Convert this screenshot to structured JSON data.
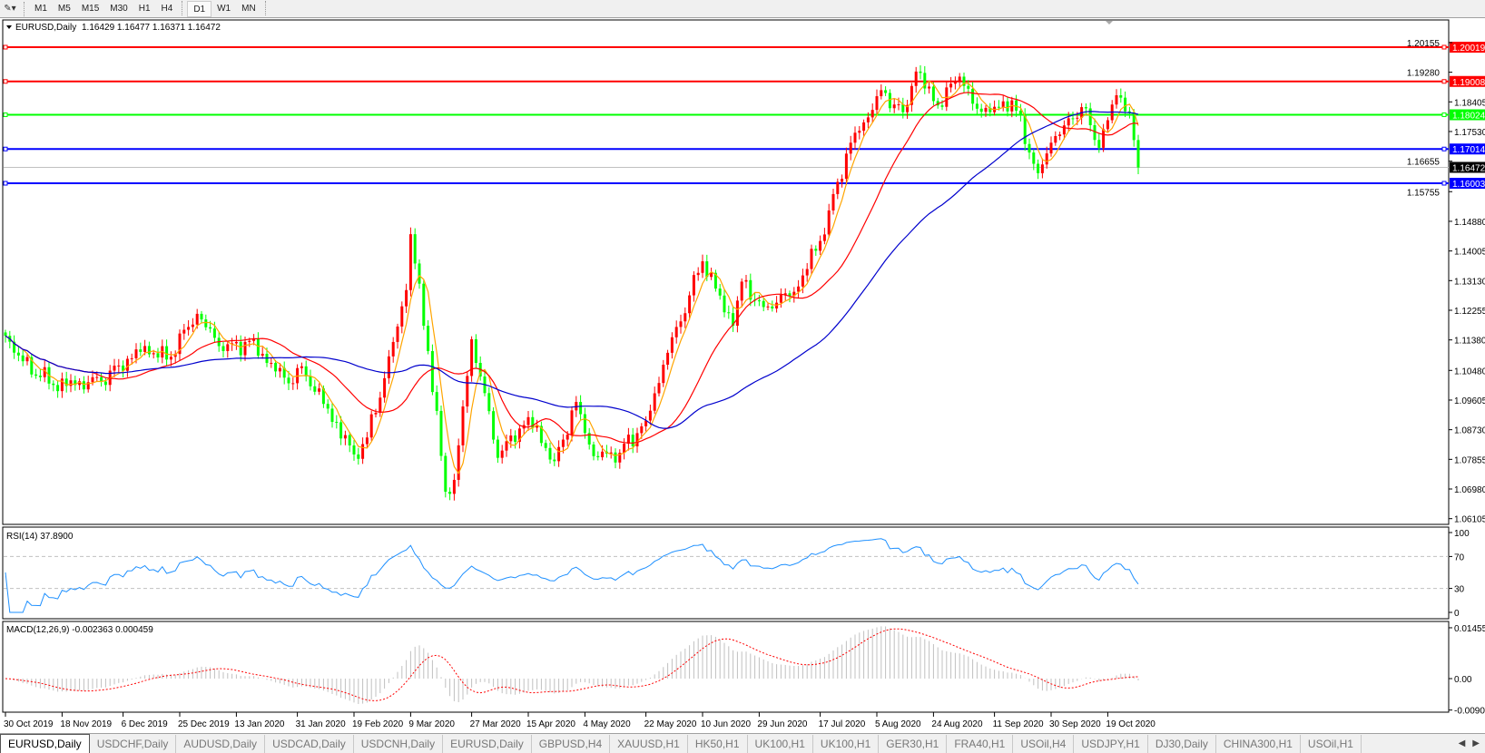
{
  "toolbar": {
    "timeframes": [
      "M1",
      "M5",
      "M15",
      "M30",
      "H1",
      "H4",
      "D1",
      "W1",
      "MN"
    ],
    "active_timeframe": "D1"
  },
  "chart_title": "EURUSD,Daily",
  "chart_ohlc": "1.16429 1.16477 1.16371 1.16472",
  "rsi_label": "RSI(14) 37.8900",
  "macd_label": "MACD(12,26,9) -0.002363 0.000459",
  "colors": {
    "bull": "#ff0000",
    "bear": "#00ff00",
    "ma_fast": "#ffa500",
    "ma_mid": "#ff0000",
    "ma_slow": "#0000cd",
    "rsi": "#1e90ff",
    "macd_hist": "#c0c0c0",
    "macd_signal": "#ff0000"
  },
  "chart_data": {
    "type": "candlestick",
    "symbol": "EURUSD",
    "timeframe": "Daily",
    "bull_color": "red",
    "bear_color": "green",
    "close_keypoints": [
      [
        "2019-10-30",
        1.115
      ],
      [
        "2019-11-05",
        1.1075
      ],
      [
        "2019-11-14",
        1.1005
      ],
      [
        "2019-11-29",
        1.1015
      ],
      [
        "2019-12-13",
        1.112
      ],
      [
        "2019-12-20",
        1.108
      ],
      [
        "2019-12-31",
        1.1215
      ],
      [
        "2020-01-08",
        1.1105
      ],
      [
        "2020-01-16",
        1.1135
      ],
      [
        "2020-01-29",
        1.101
      ],
      [
        "2020-02-03",
        1.106
      ],
      [
        "2020-02-19",
        1.08
      ],
      [
        "2020-02-24",
        1.085
      ],
      [
        "2020-02-28",
        1.1025
      ],
      [
        "2020-03-06",
        1.1285
      ],
      [
        "2020-03-09",
        1.145
      ],
      [
        "2020-03-13",
        1.1105
      ],
      [
        "2020-03-19",
        1.069
      ],
      [
        "2020-03-23",
        1.0725
      ],
      [
        "2020-03-27",
        1.114
      ],
      [
        "2020-03-31",
        1.103
      ],
      [
        "2020-04-06",
        1.079
      ],
      [
        "2020-04-15",
        1.091
      ],
      [
        "2020-04-23",
        1.078
      ],
      [
        "2020-04-30",
        1.0955
      ],
      [
        "2020-05-06",
        1.0795
      ],
      [
        "2020-05-14",
        1.0805
      ],
      [
        "2020-05-22",
        1.09
      ],
      [
        "2020-05-29",
        1.11
      ],
      [
        "2020-06-10",
        1.137
      ],
      [
        "2020-06-19",
        1.118
      ],
      [
        "2020-06-23",
        1.131
      ],
      [
        "2020-06-30",
        1.1235
      ],
      [
        "2020-07-09",
        1.128
      ],
      [
        "2020-07-17",
        1.143
      ],
      [
        "2020-07-21",
        1.152
      ],
      [
        "2020-07-28",
        1.172
      ],
      [
        "2020-07-31",
        1.178
      ],
      [
        "2020-08-06",
        1.1875
      ],
      [
        "2020-08-13",
        1.181
      ],
      [
        "2020-08-18",
        1.193
      ],
      [
        "2020-08-25",
        1.183
      ],
      [
        "2020-09-01",
        1.1915
      ],
      [
        "2020-09-04",
        1.1835
      ],
      [
        "2020-09-10",
        1.181
      ],
      [
        "2020-09-17",
        1.1845
      ],
      [
        "2020-09-25",
        1.163
      ],
      [
        "2020-09-30",
        1.172
      ],
      [
        "2020-10-09",
        1.1825
      ],
      [
        "2020-10-15",
        1.1705
      ],
      [
        "2020-10-21",
        1.186
      ],
      [
        "2020-10-26",
        1.181
      ],
      [
        "2020-10-28",
        1.1647
      ]
    ],
    "moving_averages": [
      "fast",
      "mid",
      "slow"
    ],
    "y_ticks": [
      "1.20155",
      "1.19280",
      "1.18405",
      "1.17530",
      "1.16655",
      "1.15755",
      "1.14880",
      "1.14005",
      "1.13130",
      "1.12255",
      "1.11380",
      "1.10480",
      "1.09605",
      "1.08730",
      "1.07855",
      "1.06980",
      "1.06105"
    ],
    "ylim": [
      1.06105,
      1.20155
    ],
    "x_ticks": [
      {
        "label": "30 Oct 2019",
        "date": "2019-10-30"
      },
      {
        "label": "18 Nov 2019",
        "date": "2019-11-18"
      },
      {
        "label": "6 Dec 2019",
        "date": "2019-12-06"
      },
      {
        "label": "25 Dec 2019",
        "date": "2019-12-25"
      },
      {
        "label": "13 Jan 2020",
        "date": "2020-01-13"
      },
      {
        "label": "31 Jan 2020",
        "date": "2020-01-31"
      },
      {
        "label": "19 Feb 2020",
        "date": "2020-02-19"
      },
      {
        "label": "9 Mar 2020",
        "date": "2020-03-09"
      },
      {
        "label": "27 Mar 2020",
        "date": "2020-03-27"
      },
      {
        "label": "15 Apr 2020",
        "date": "2020-04-15"
      },
      {
        "label": "4 May 2020",
        "date": "2020-05-04"
      },
      {
        "label": "22 May 2020",
        "date": "2020-05-22"
      },
      {
        "label": "10 Jun 2020",
        "date": "2020-06-10"
      },
      {
        "label": "29 Jun 2020",
        "date": "2020-06-29"
      },
      {
        "label": "17 Jul 2020",
        "date": "2020-07-17"
      },
      {
        "label": "5 Aug 2020",
        "date": "2020-08-05"
      },
      {
        "label": "24 Aug 2020",
        "date": "2020-08-24"
      },
      {
        "label": "11 Sep 2020",
        "date": "2020-09-11"
      },
      {
        "label": "30 Sep 2020",
        "date": "2020-09-30"
      },
      {
        "label": "19 Oct 2020",
        "date": "2020-10-19"
      }
    ],
    "horizontal_levels": [
      {
        "value": "1.20019",
        "color": "#ff0000"
      },
      {
        "value": "1.19008",
        "color": "#ff0000"
      },
      {
        "value": "1.18024",
        "color": "#00ff00"
      },
      {
        "value": "1.17014",
        "color": "#0000ff"
      },
      {
        "value": "1.16003",
        "color": "#0000ff"
      }
    ],
    "bid": {
      "value": "1.16472",
      "color": "#000000"
    },
    "rsi": {
      "period": 14,
      "current": 37.89,
      "levels": [
        30,
        70
      ],
      "ticks": [
        "100",
        "70",
        "30",
        "0"
      ],
      "ylim": [
        0,
        100
      ]
    },
    "macd": {
      "fast": 12,
      "slow": 26,
      "signal": 9,
      "main": -0.002363,
      "signal_value": 0.000459,
      "ticks": [
        "0.014556",
        "0.00",
        "-0.00900"
      ],
      "ylim": [
        -0.009,
        0.014556
      ]
    }
  },
  "tabs": [
    "EURUSD,Daily",
    "USDCHF,Daily",
    "AUDUSD,Daily",
    "USDCAD,Daily",
    "USDCNH,Daily",
    "EURUSD,Daily",
    "GBPUSD,H4",
    "XAUUSD,H1",
    "HK50,H1",
    "UK100,H1",
    "UK100,H1",
    "GER30,H1",
    "FRA40,H1",
    "USOil,H4",
    "USDJPY,H1",
    "DJ30,Daily",
    "CHINA300,H1",
    "USOil,H1"
  ],
  "active_tab": 0
}
